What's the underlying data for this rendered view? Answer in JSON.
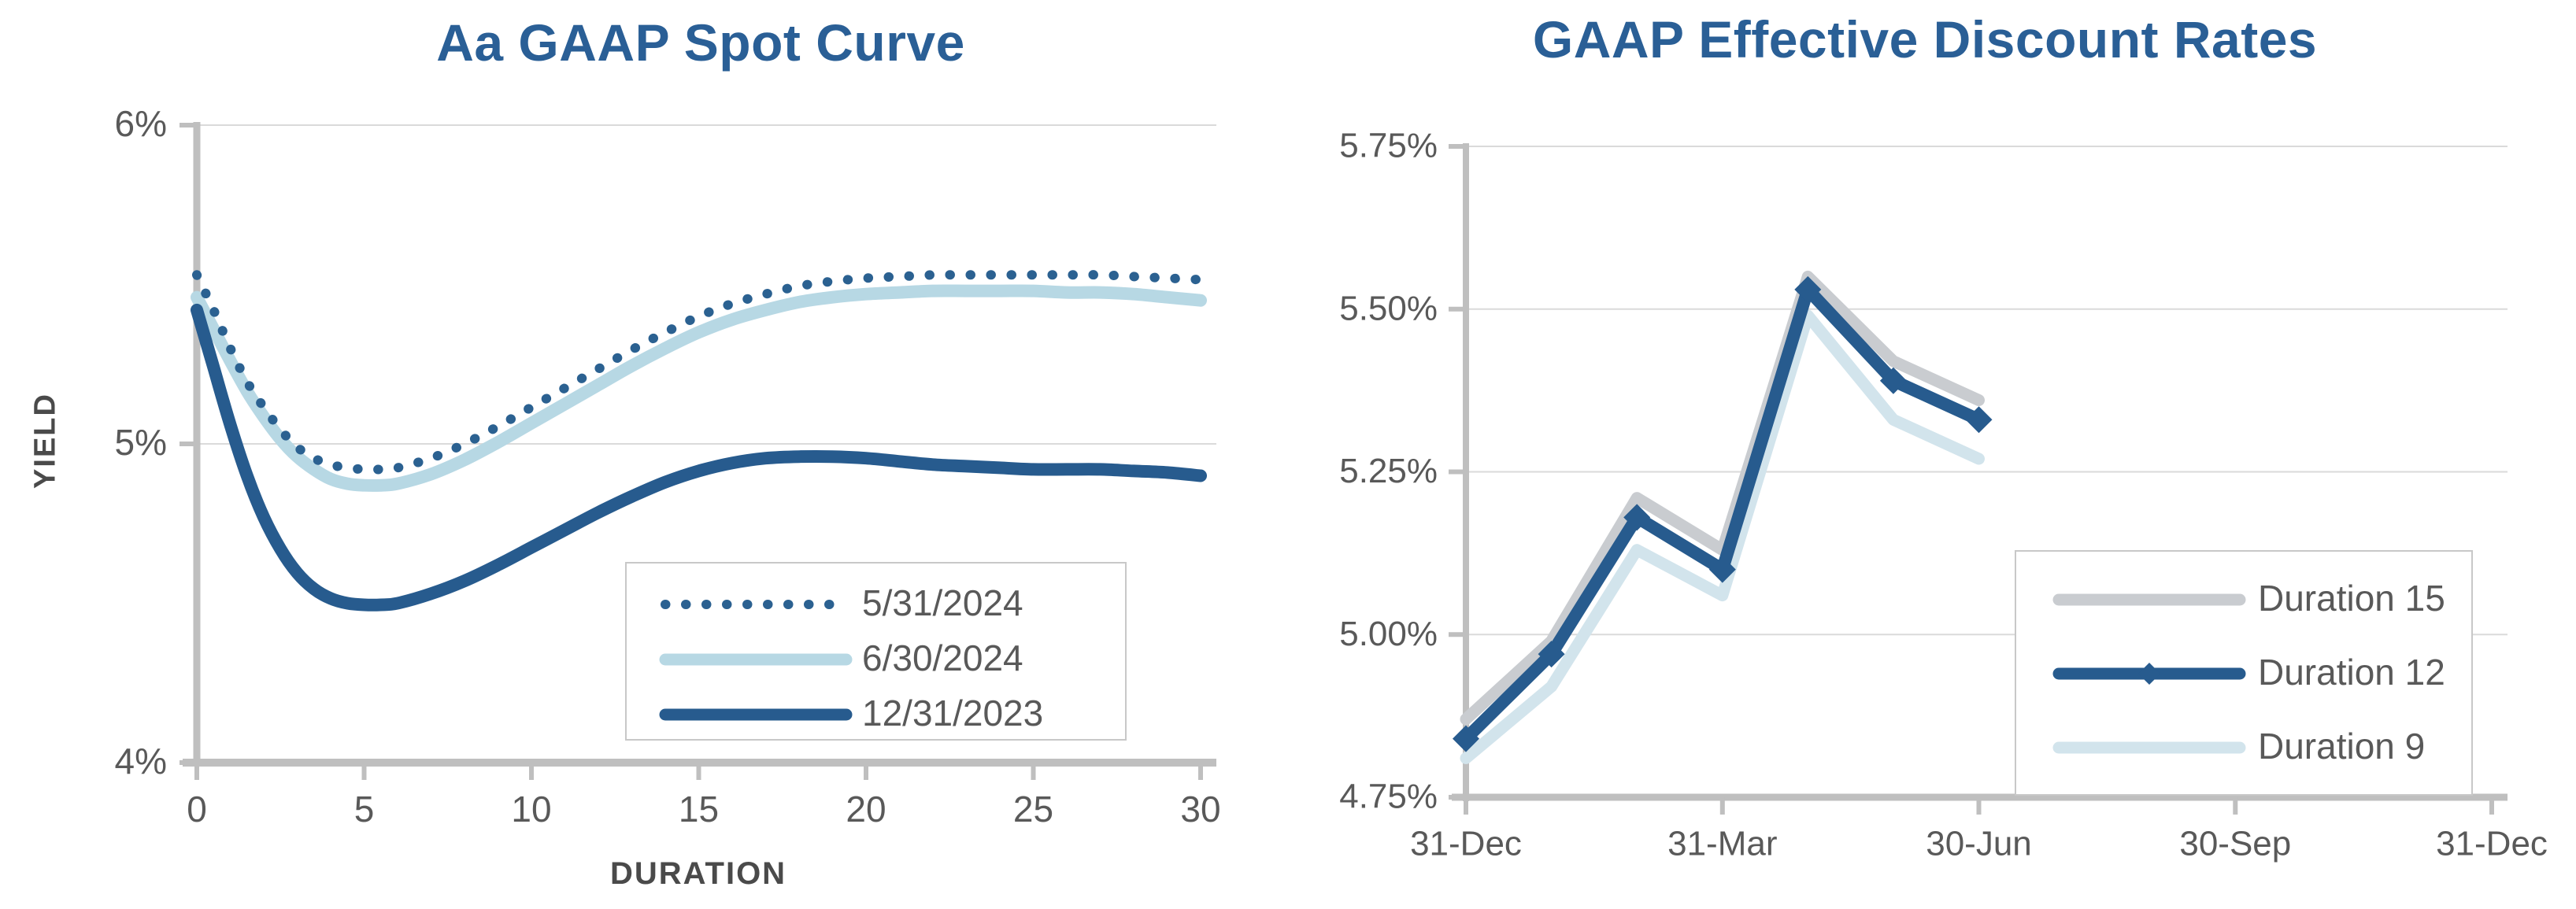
{
  "page": {
    "background": "#ffffff"
  },
  "colors": {
    "title_blue": "#2A5F96",
    "navy": "#275B8E",
    "dotted_navy": "#2B6191",
    "light_blue_left": "#B7D8E4",
    "light_blue_right": "#D2E4EC",
    "gray_series": "#C9CCD0",
    "axis_line": "#BFBFBF",
    "gridline": "#DADADA",
    "tick_text": "#595959",
    "legend_border": "#C8C8C8"
  },
  "chart_data": [
    {
      "id": "spot-curve",
      "type": "line",
      "title": "Aa GAAP Spot Curve",
      "x_axis": {
        "label": "DURATION",
        "range": [
          0,
          30
        ],
        "tick_values": [
          0,
          5,
          10,
          15,
          20,
          25,
          30
        ],
        "tick_labels": [
          "0",
          "5",
          "10",
          "15",
          "20",
          "25",
          "30"
        ]
      },
      "y_axis": {
        "label": "YIELD",
        "range": [
          4,
          6
        ],
        "tick_values": [
          6,
          5,
          4
        ],
        "tick_labels": [
          "6%",
          "5%",
          "4%"
        ]
      },
      "grid": "horizontal",
      "legend_position": "inside-bottom-center",
      "legend": [
        "5/31/2024",
        "6/30/2024",
        "12/31/2023"
      ],
      "x_samples": [
        0,
        0.5,
        1,
        1.5,
        2,
        2.5,
        3,
        3.5,
        4,
        4.5,
        5,
        5.5,
        6,
        7,
        8,
        9,
        10,
        11,
        12,
        13,
        14,
        15,
        16,
        17,
        18,
        19,
        20,
        21,
        22,
        23,
        24,
        25,
        26,
        27,
        28,
        29,
        30
      ],
      "draw_order": [
        1,
        0,
        2
      ],
      "series": [
        {
          "name": "5/31/2024",
          "style": "dotted",
          "smooth": true,
          "color": "#2B6191",
          "width": 12,
          "values": [
            5.53,
            5.42,
            5.3,
            5.195,
            5.115,
            5.045,
            4.99,
            4.955,
            4.935,
            4.925,
            4.92,
            4.92,
            4.925,
            4.955,
            5.0,
            5.055,
            5.115,
            5.175,
            5.235,
            5.295,
            5.35,
            5.4,
            5.44,
            5.47,
            5.495,
            5.51,
            5.52,
            5.525,
            5.53,
            5.53,
            5.53,
            5.53,
            5.53,
            5.53,
            5.525,
            5.52,
            5.515
          ]
        },
        {
          "name": "6/30/2024",
          "style": "solid",
          "smooth": true,
          "color": "#B7D8E4",
          "width": 16,
          "values": [
            5.46,
            5.36,
            5.26,
            5.165,
            5.085,
            5.015,
            4.96,
            4.92,
            4.89,
            4.875,
            4.87,
            4.87,
            4.875,
            4.905,
            4.95,
            5.005,
            5.065,
            5.125,
            5.185,
            5.245,
            5.3,
            5.35,
            5.39,
            5.42,
            5.445,
            5.46,
            5.47,
            5.475,
            5.48,
            5.48,
            5.48,
            5.48,
            5.475,
            5.475,
            5.47,
            5.46,
            5.45
          ]
        },
        {
          "name": "12/31/2023",
          "style": "solid",
          "smooth": true,
          "color": "#275B8E",
          "width": 16,
          "values": [
            5.42,
            5.24,
            5.06,
            4.9,
            4.77,
            4.67,
            4.595,
            4.545,
            4.515,
            4.5,
            4.495,
            4.495,
            4.5,
            4.53,
            4.57,
            4.62,
            4.675,
            4.73,
            4.785,
            4.835,
            4.88,
            4.915,
            4.94,
            4.955,
            4.96,
            4.96,
            4.955,
            4.945,
            4.935,
            4.93,
            4.925,
            4.92,
            4.92,
            4.92,
            4.915,
            4.91,
            4.9
          ]
        }
      ]
    },
    {
      "id": "discount-rates",
      "type": "line",
      "title": "GAAP Effective Discount Rates",
      "x_axis": {
        "label": "",
        "range": [
          0,
          12
        ],
        "tick_values": [
          0,
          3,
          6,
          9,
          12
        ],
        "tick_labels": [
          "31-Dec",
          "31-Mar",
          "30-Jun",
          "30-Sep",
          "31-Dec"
        ]
      },
      "y_axis": {
        "label": "",
        "range": [
          4.75,
          5.75
        ],
        "tick_values": [
          5.75,
          5.5,
          5.25,
          5.0,
          4.75
        ],
        "tick_labels": [
          "5.75%",
          "5.50%",
          "5.25%",
          "5.00%",
          "4.75%"
        ]
      },
      "grid": "horizontal",
      "legend_position": "inside-right",
      "legend": [
        "Duration 15",
        "Duration 12",
        "Duration 9"
      ],
      "x_samples": [
        0,
        1,
        2,
        3,
        4,
        5,
        6
      ],
      "draw_order": [
        0,
        2,
        1
      ],
      "series": [
        {
          "name": "Duration 15",
          "style": "solid",
          "smooth": false,
          "color": "#C9CCD0",
          "width": 15,
          "values": [
            4.87,
            4.99,
            5.21,
            5.13,
            5.55,
            5.42,
            5.36
          ]
        },
        {
          "name": "Duration 12",
          "style": "solid",
          "smooth": false,
          "color": "#275B8E",
          "width": 16,
          "marker": "diamond",
          "values": [
            4.84,
            4.97,
            5.18,
            5.1,
            5.53,
            5.39,
            5.33
          ]
        },
        {
          "name": "Duration 9",
          "style": "solid",
          "smooth": false,
          "color": "#D2E4EC",
          "width": 15,
          "values": [
            4.81,
            4.92,
            5.13,
            5.06,
            5.49,
            5.33,
            5.27
          ]
        }
      ]
    }
  ]
}
